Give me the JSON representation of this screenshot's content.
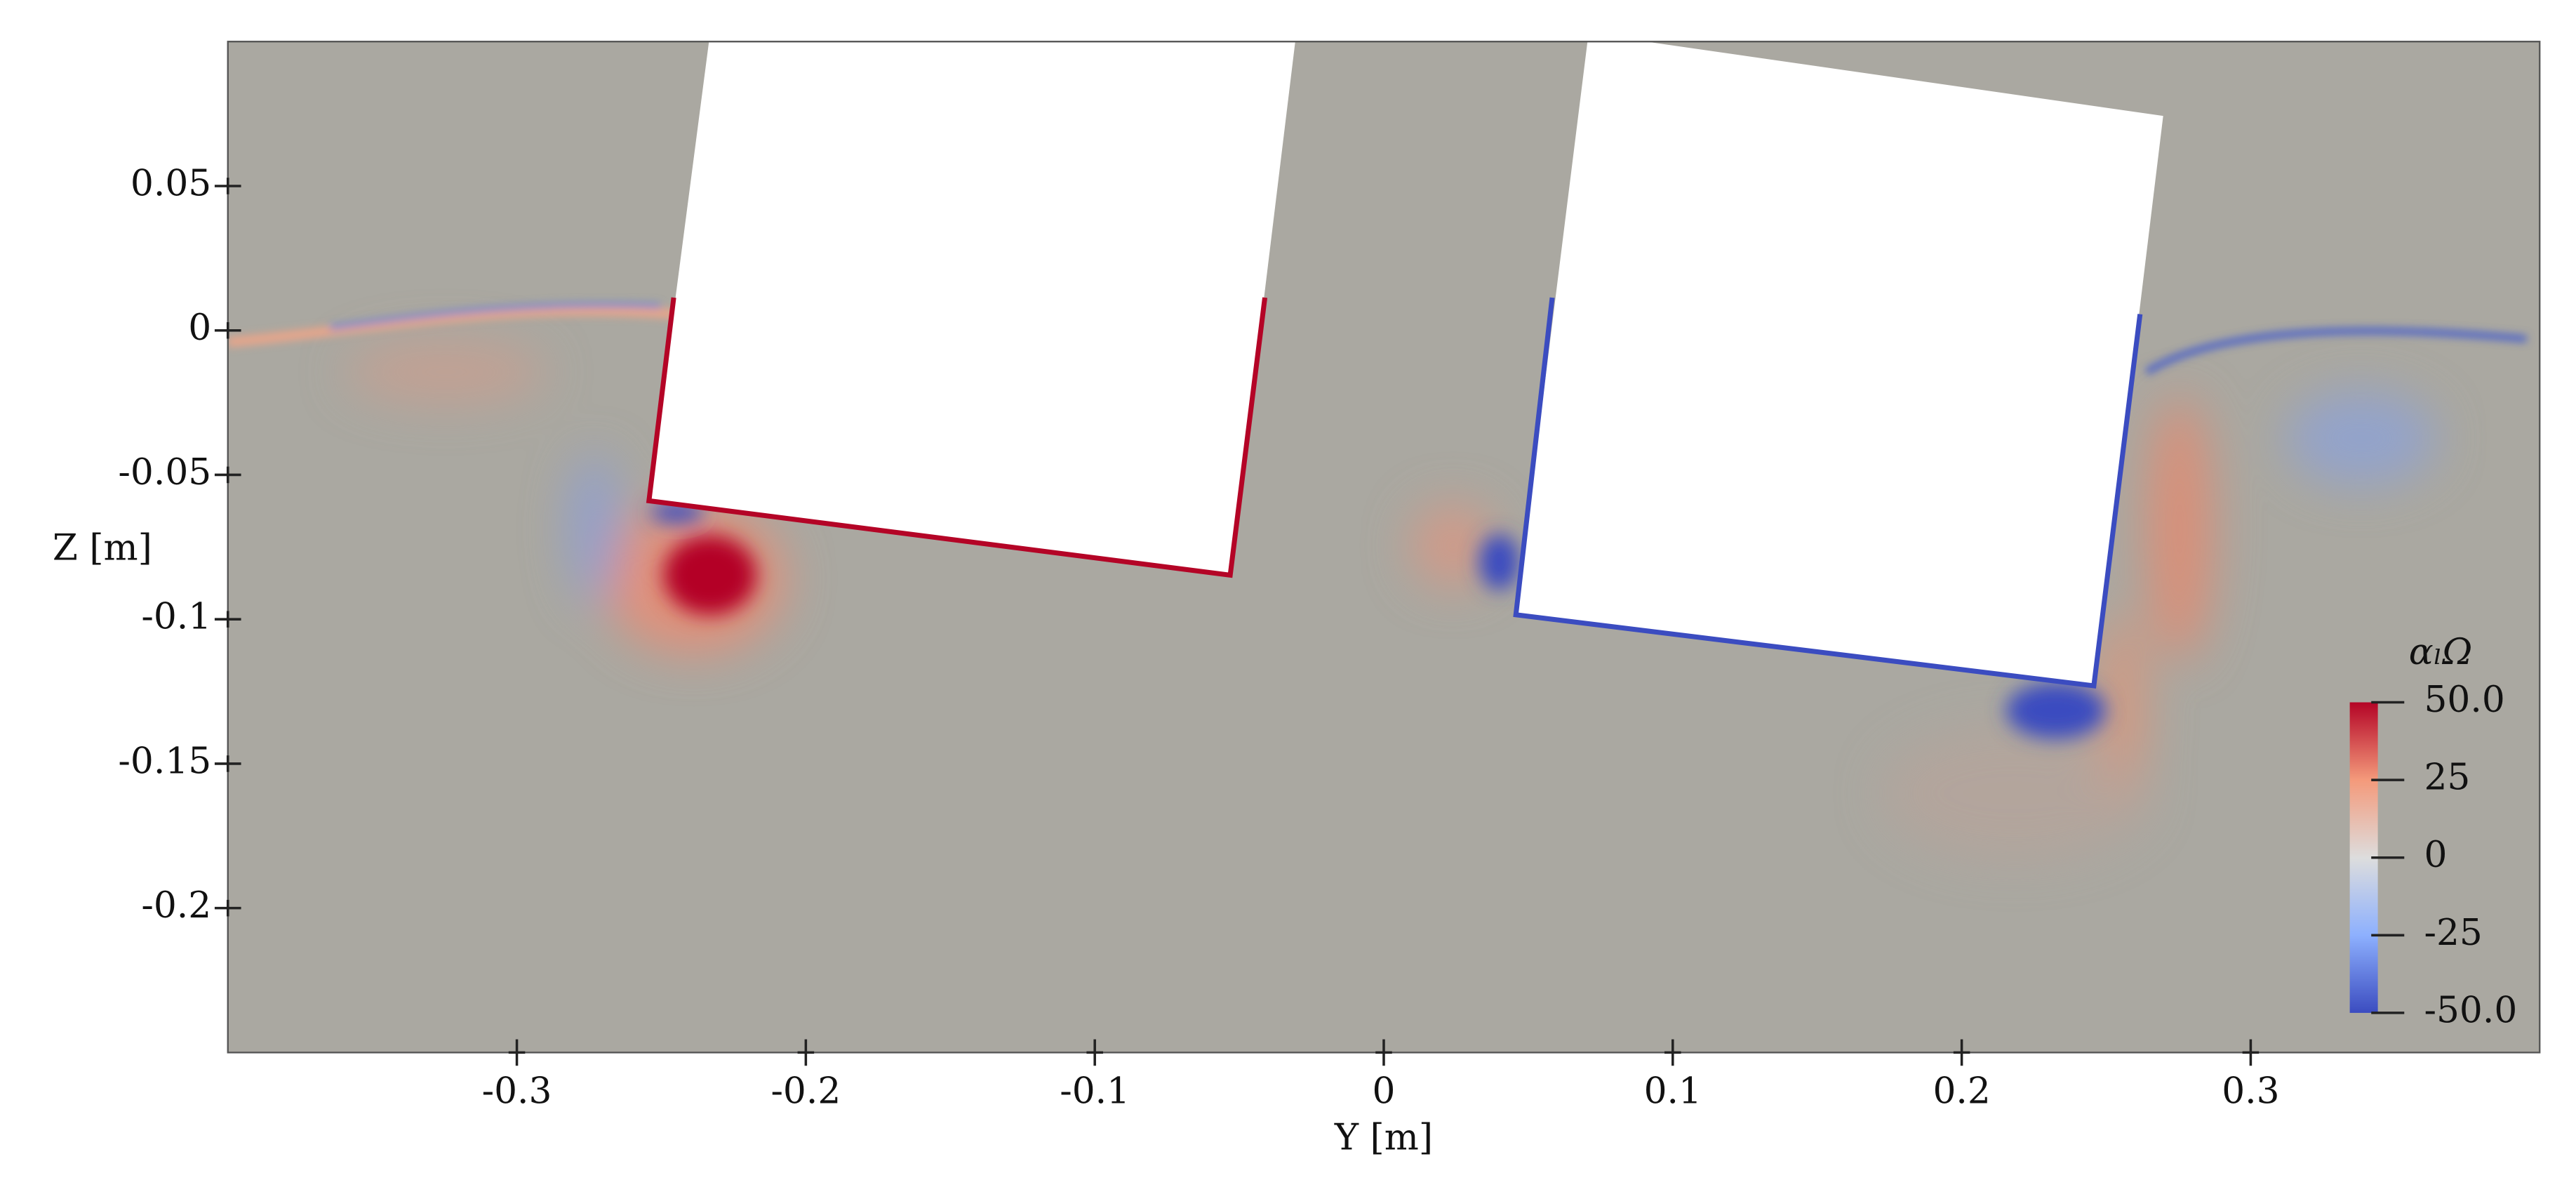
{
  "chart_data": {
    "type": "field",
    "xlabel": "Y [m]",
    "ylabel": "Z [m]",
    "xlim": [
      -0.4,
      0.4
    ],
    "ylim": [
      -0.25,
      0.1
    ],
    "xticks": [
      -0.3,
      -0.2,
      -0.1,
      0,
      0.1,
      0.2,
      0.3
    ],
    "yticks": [
      0.05,
      0,
      -0.05,
      -0.1,
      -0.15,
      -0.2
    ],
    "colorbar": {
      "title": "αₗΩ",
      "clim": [
        -50,
        50
      ],
      "ticks": [
        {
          "value": 50,
          "label": "50.0"
        },
        25,
        0,
        -25,
        {
          "value": -50,
          "label": "-50.0"
        }
      ]
    }
  }
}
